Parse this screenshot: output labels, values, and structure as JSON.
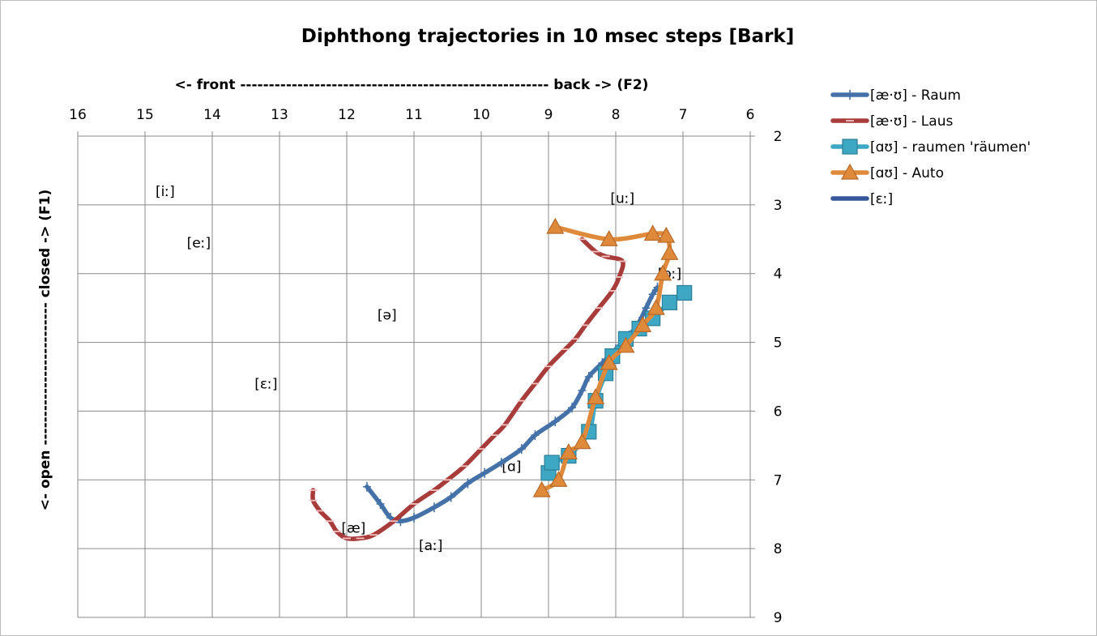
{
  "chart_data": {
    "type": "line",
    "title": "Diphthong trajectories in 10 msec steps [Bark]",
    "xlabel": "<- front ------------------------------------------------------ back -> (F2)",
    "ylabel": "<- open ------------------------- closed -> (F1)",
    "x_reversed": true,
    "y_reversed": true,
    "xlim": [
      16,
      6
    ],
    "ylim": [
      2,
      9
    ],
    "x_ticks": [
      "16",
      "15",
      "14",
      "13",
      "12",
      "11",
      "10",
      "9",
      "8",
      "7",
      "6"
    ],
    "y_ticks": [
      "2",
      "3",
      "4",
      "5",
      "6",
      "7",
      "8",
      "9"
    ],
    "x_axis_position": "top",
    "y_axis_position": "right",
    "grid": true,
    "legend_position": "right",
    "series": [
      {
        "name": "[æ·ʊ] - Raum",
        "color": "#4472a8",
        "marker": "plus",
        "points": [
          [
            11.7,
            7.1
          ],
          [
            11.5,
            7.35
          ],
          [
            11.35,
            7.55
          ],
          [
            11.2,
            7.6
          ],
          [
            11.0,
            7.55
          ],
          [
            10.7,
            7.4
          ],
          [
            10.45,
            7.25
          ],
          [
            10.2,
            7.05
          ],
          [
            9.95,
            6.9
          ],
          [
            9.7,
            6.75
          ],
          [
            9.4,
            6.55
          ],
          [
            9.2,
            6.35
          ],
          [
            8.9,
            6.15
          ],
          [
            8.65,
            5.95
          ],
          [
            8.5,
            5.7
          ],
          [
            8.4,
            5.5
          ],
          [
            8.2,
            5.3
          ],
          [
            8.0,
            5.1
          ],
          [
            7.8,
            4.9
          ],
          [
            7.65,
            4.7
          ],
          [
            7.55,
            4.5
          ],
          [
            7.45,
            4.3
          ],
          [
            7.38,
            4.2
          ]
        ]
      },
      {
        "name": "[æ·ʊ] - Laus",
        "color": "#a83c3a",
        "marker": "dash",
        "points": [
          [
            12.5,
            7.15
          ],
          [
            12.5,
            7.3
          ],
          [
            12.4,
            7.45
          ],
          [
            12.25,
            7.6
          ],
          [
            12.15,
            7.75
          ],
          [
            12.0,
            7.85
          ],
          [
            11.8,
            7.85
          ],
          [
            11.6,
            7.8
          ],
          [
            11.3,
            7.6
          ],
          [
            11.0,
            7.35
          ],
          [
            10.7,
            7.15
          ],
          [
            10.5,
            7.0
          ],
          [
            10.25,
            6.8
          ],
          [
            10.0,
            6.55
          ],
          [
            9.8,
            6.35
          ],
          [
            9.65,
            6.2
          ],
          [
            9.4,
            5.85
          ],
          [
            9.2,
            5.6
          ],
          [
            9.0,
            5.35
          ],
          [
            8.75,
            5.1
          ],
          [
            8.6,
            4.95
          ],
          [
            8.45,
            4.75
          ],
          [
            8.25,
            4.5
          ],
          [
            8.05,
            4.25
          ],
          [
            7.95,
            4.05
          ],
          [
            7.9,
            3.82
          ],
          [
            8.15,
            3.75
          ],
          [
            8.3,
            3.68
          ],
          [
            8.5,
            3.5
          ]
        ]
      },
      {
        "name": "[ɑʊ] - raumen 'räumen'",
        "color": "#3ea8c4",
        "marker": "square",
        "points": [
          [
            9.0,
            6.9
          ],
          [
            8.95,
            6.75
          ],
          [
            8.7,
            6.65
          ],
          [
            8.4,
            6.3
          ],
          [
            8.3,
            5.85
          ],
          [
            8.15,
            5.45
          ],
          [
            8.05,
            5.2
          ],
          [
            7.85,
            4.95
          ],
          [
            7.65,
            4.8
          ],
          [
            7.45,
            4.65
          ],
          [
            7.2,
            4.42
          ],
          [
            6.98,
            4.28
          ]
        ]
      },
      {
        "name": "[ɑʊ] - Auto",
        "color": "#df8a3a",
        "marker": "triangle",
        "points": [
          [
            9.1,
            7.15
          ],
          [
            8.85,
            7.0
          ],
          [
            8.7,
            6.6
          ],
          [
            8.5,
            6.45
          ],
          [
            8.3,
            5.8
          ],
          [
            8.1,
            5.3
          ],
          [
            7.85,
            5.05
          ],
          [
            7.6,
            4.75
          ],
          [
            7.4,
            4.5
          ],
          [
            7.3,
            4.0
          ],
          [
            7.2,
            3.7
          ],
          [
            7.25,
            3.45
          ],
          [
            7.45,
            3.42
          ],
          [
            8.1,
            3.5
          ],
          [
            8.9,
            3.32
          ]
        ]
      },
      {
        "name": "[ɛː]",
        "color": "#34589a",
        "marker": "none",
        "points": []
      }
    ],
    "annotations": [
      {
        "text": "[iː]",
        "x": 14.7,
        "y": 2.8
      },
      {
        "text": "[uː]",
        "x": 7.9,
        "y": 2.9
      },
      {
        "text": "[eː]",
        "x": 14.2,
        "y": 3.55
      },
      {
        "text": "[oː]",
        "x": 7.2,
        "y": 4.0
      },
      {
        "text": "[ə]",
        "x": 11.4,
        "y": 4.6
      },
      {
        "text": "[ɛː]",
        "x": 13.2,
        "y": 5.6
      },
      {
        "text": "[ɑ]",
        "x": 9.55,
        "y": 6.8
      },
      {
        "text": "[æ]",
        "x": 11.9,
        "y": 7.7
      },
      {
        "text": "[aː]",
        "x": 10.75,
        "y": 7.95
      }
    ]
  }
}
